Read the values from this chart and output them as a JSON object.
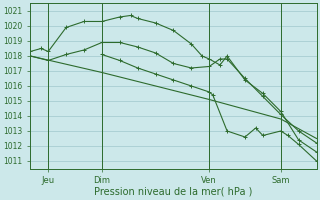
{
  "background_color": "#cce8ea",
  "grid_color": "#a0c8cc",
  "line_color": "#2d6b2d",
  "title": "Pression niveau de la mer( hPa )",
  "ylabel_ticks": [
    1011,
    1012,
    1013,
    1014,
    1015,
    1016,
    1017,
    1018,
    1019,
    1020,
    1021
  ],
  "xlim": [
    0,
    8.0
  ],
  "ylim": [
    1010.5,
    1021.5
  ],
  "x_tick_positions": [
    0.5,
    2.0,
    5.0,
    7.0
  ],
  "x_tick_labels": [
    "Jeu",
    "Dim",
    "Ven",
    "Sam"
  ],
  "x_vlines": [
    0.5,
    2.0,
    5.0,
    7.0
  ],
  "series": [
    {
      "x": [
        0.0,
        0.3,
        0.5,
        1.0,
        1.5,
        2.0,
        2.5,
        2.8,
        3.0,
        3.5,
        4.0,
        4.5,
        4.8,
        5.0,
        5.3,
        5.5,
        6.0,
        6.5,
        7.0,
        7.5,
        8.0
      ],
      "y": [
        1018.3,
        1018.5,
        1018.3,
        1019.9,
        1020.3,
        1020.3,
        1020.6,
        1020.7,
        1020.5,
        1020.2,
        1019.7,
        1018.8,
        1018.0,
        1017.8,
        1017.4,
        1018.0,
        1016.4,
        1015.5,
        1014.3,
        1012.4,
        1011.6
      ],
      "marker": "+"
    },
    {
      "x": [
        0.0,
        0.5,
        1.0,
        1.5,
        2.0,
        2.5,
        3.0,
        3.5,
        4.0,
        4.5,
        5.0,
        5.3,
        5.5,
        6.0,
        6.5,
        7.0,
        7.5,
        8.0
      ],
      "y": [
        1018.0,
        1017.7,
        1018.1,
        1018.4,
        1018.9,
        1018.9,
        1018.6,
        1018.2,
        1017.5,
        1017.2,
        1017.3,
        1017.8,
        1017.8,
        1016.5,
        1015.3,
        1014.1,
        1013.0,
        1012.2
      ],
      "marker": "+"
    },
    {
      "x": [
        0.0,
        2.0,
        5.0,
        7.0,
        8.0
      ],
      "y": [
        1018.0,
        1016.9,
        1015.1,
        1013.8,
        1012.5
      ],
      "marker": null
    },
    {
      "x": [
        2.0,
        2.5,
        3.0,
        3.5,
        4.0,
        4.5,
        5.0,
        5.1,
        5.5,
        6.0,
        6.3,
        6.5,
        7.0,
        7.2,
        7.5,
        8.0
      ],
      "y": [
        1018.1,
        1017.7,
        1017.2,
        1016.8,
        1016.4,
        1016.0,
        1015.6,
        1015.4,
        1013.0,
        1012.6,
        1013.2,
        1012.7,
        1013.0,
        1012.7,
        1012.1,
        1011.0
      ],
      "marker": "+"
    }
  ]
}
